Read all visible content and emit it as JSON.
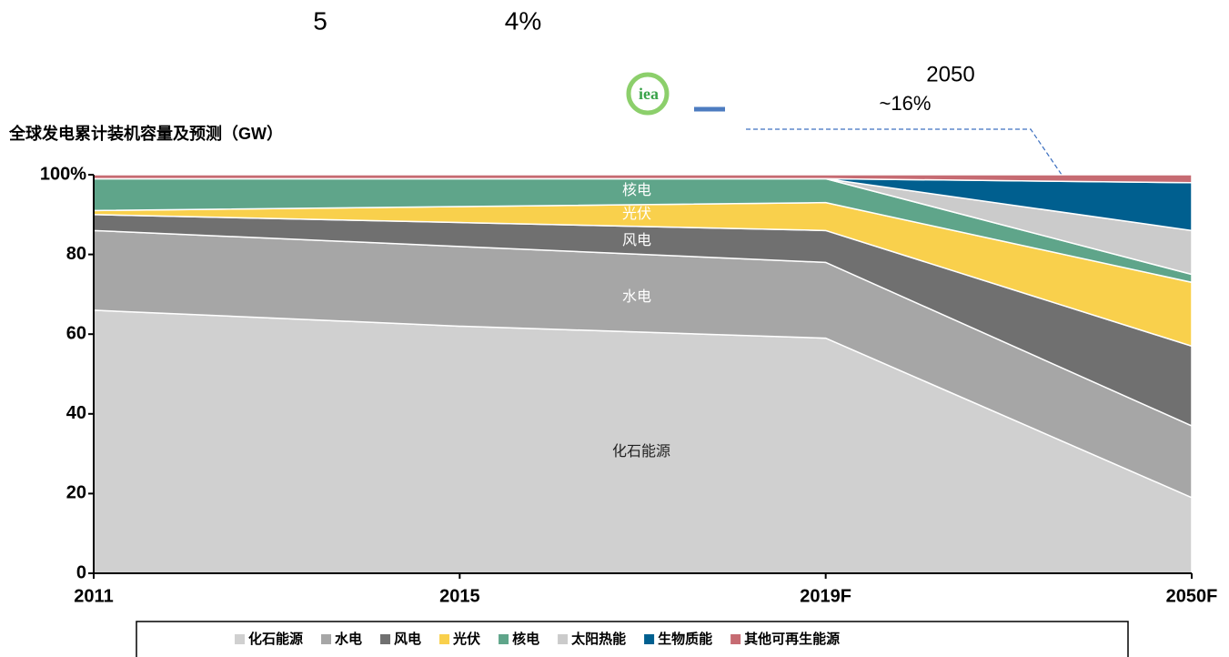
{
  "header": {
    "notes": [
      "5",
      "4%",
      "2050",
      "~16%"
    ],
    "logo": "iea"
  },
  "chart_data": {
    "type": "area",
    "title": "全球发电累计装机容量及预测（GW）",
    "categories": [
      "2011",
      "2015",
      "2019F",
      "2050F"
    ],
    "stacked": true,
    "series": [
      {
        "name": "化石能源",
        "color": "#d0d0d0",
        "values": [
          66,
          62,
          59,
          19
        ]
      },
      {
        "name": "水电",
        "color": "#a6a6a6",
        "values": [
          20,
          20,
          19,
          18
        ]
      },
      {
        "name": "风电",
        "color": "#707070",
        "values": [
          4,
          6,
          8,
          20
        ]
      },
      {
        "name": "光伏",
        "color": "#f9d04c",
        "values": [
          1,
          4,
          7,
          16
        ]
      },
      {
        "name": "核电",
        "color": "#5fa58a",
        "values": [
          8,
          7,
          6,
          2
        ]
      },
      {
        "name": "太阳热能",
        "color": "#cbcbcb",
        "values": [
          0,
          0,
          0,
          11
        ]
      },
      {
        "name": "生物质能",
        "color": "#005f8f",
        "values": [
          0,
          0,
          0,
          12
        ]
      },
      {
        "name": "其他可再生能源",
        "color": "#c66b72",
        "values": [
          1,
          1,
          1,
          2
        ]
      }
    ],
    "annotations": [
      "核电",
      "光伏",
      "风电",
      "水电",
      "化石能源"
    ],
    "ylim": [
      0,
      100
    ],
    "yticks": [
      0,
      20,
      40,
      60,
      80,
      {
        "value": 100,
        "label": "100%"
      }
    ]
  }
}
